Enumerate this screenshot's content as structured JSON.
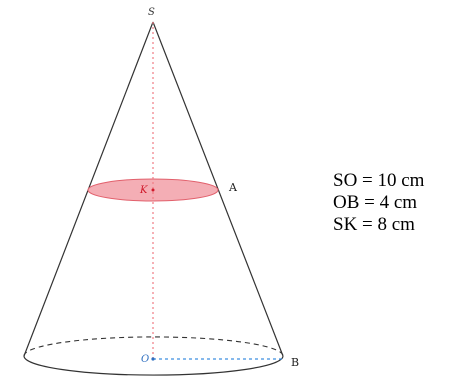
{
  "points": {
    "apex": "S",
    "section_center": "K",
    "section_point": "A",
    "base_center": "O",
    "base_point": "B"
  },
  "measurements": [
    "SO = 10 cm",
    "OB = 4 cm",
    "SK = 8 cm"
  ],
  "colors": {
    "outline": "#333333",
    "axis": "#f07c84",
    "section_fill": "#f2a0a8",
    "section_stroke": "#e2606c",
    "section_label": "#d0182a",
    "radius_line": "#3d8fe0",
    "base_center_label": "#2f6fc0"
  }
}
